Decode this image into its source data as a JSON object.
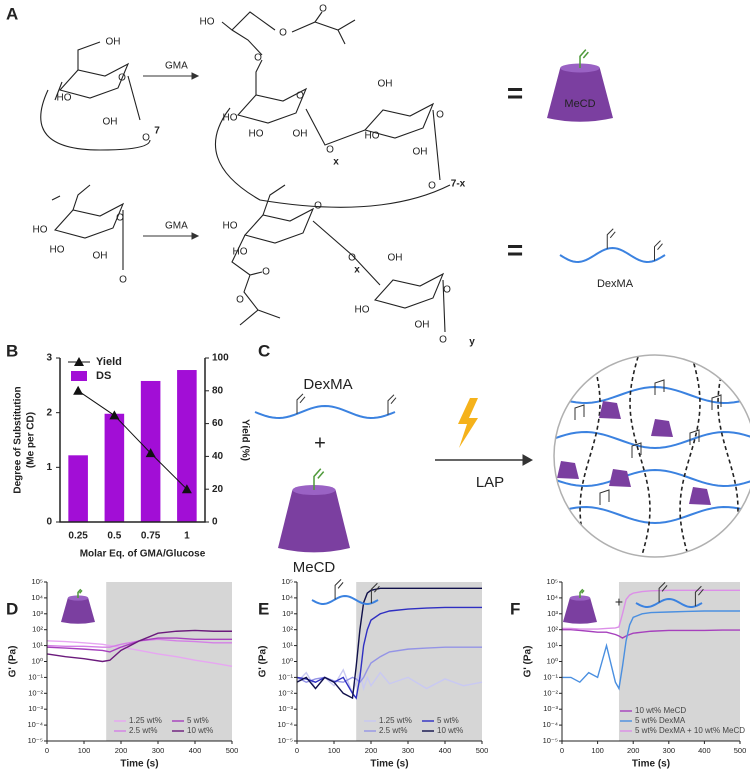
{
  "scheme": {
    "panel": "A",
    "row1": {
      "reactant_labels": [
        "OH",
        "O",
        "HO",
        "OH",
        "O",
        "7"
      ],
      "reagent": "GMA",
      "product_labels": [
        "HO",
        "O",
        "O",
        "O",
        "O",
        "HO",
        "HO",
        "OH",
        "O",
        "x",
        "OH",
        "O",
        "HO",
        "OH",
        "O",
        "7-x"
      ],
      "equals": "=",
      "product_name": "MeCD"
    },
    "row2": {
      "reactant_labels": [
        "O",
        "HO",
        "HO",
        "OH",
        "O"
      ],
      "reagent": "GMA",
      "product_labels": [
        "O",
        "HO",
        "HO",
        "O",
        "O",
        "O",
        "x",
        "OH",
        "O",
        "HO",
        "OH",
        "O",
        "y"
      ],
      "equals": "=",
      "product_name": "DexMA"
    }
  },
  "crosslinking": {
    "panel": "C",
    "polymer": "DexMA",
    "plus": "+",
    "crosslinker": "MeCD",
    "initiator": "LAP"
  },
  "chart_data": [
    {
      "type": "combo",
      "panel": "B",
      "categories": [
        "0.25",
        "0.5",
        "0.75",
        "1"
      ],
      "xlabel": "Molar Eq. of GMA/Glucose",
      "ylabel": [
        "Degree of Substitution",
        "(Me per CD)"
      ],
      "y2label": "Yield (%)",
      "ylim": [
        0,
        3
      ],
      "yticks": [
        0,
        1,
        2,
        3
      ],
      "y2lim": [
        0,
        100
      ],
      "y2ticks": [
        0,
        20,
        40,
        60,
        80,
        100
      ],
      "legend": "top-left",
      "series": [
        {
          "name": "Yield",
          "type": "line",
          "axis": "y2",
          "color": "#111111",
          "values": [
            80,
            65,
            42,
            20
          ]
        },
        {
          "name": "DS",
          "type": "bar",
          "color": "#a20ed6",
          "values": [
            1.22,
            1.98,
            2.58,
            2.78
          ]
        }
      ]
    },
    {
      "type": "line",
      "panel": "D",
      "xlabel": "Time (s)",
      "ylabel": "G' (Pa)",
      "log_scale": true,
      "xlim": [
        0,
        500
      ],
      "xticks": [
        0,
        100,
        200,
        300,
        400,
        500
      ],
      "ylim": [
        1e-05,
        100000
      ],
      "yticks": [
        {
          "value": 1e-05,
          "label": "10⁻⁵"
        },
        {
          "value": 0.0001,
          "label": "10⁻⁴"
        },
        {
          "value": 0.001,
          "label": "10⁻³"
        },
        {
          "value": 0.01,
          "label": "10⁻²"
        },
        {
          "value": 0.1,
          "label": "10⁻¹"
        },
        {
          "value": 1,
          "label": "10⁰"
        },
        {
          "value": 10,
          "label": "10¹"
        },
        {
          "value": 100,
          "label": "10²"
        },
        {
          "value": 1000,
          "label": "10³"
        },
        {
          "value": 10000,
          "label": "10⁴"
        },
        {
          "value": 100000,
          "label": "10⁵"
        }
      ],
      "highlight_xlim": [
        160,
        500
      ],
      "legend": "bottom-right",
      "legend_columns": 2,
      "x": [
        0,
        50,
        100,
        150,
        170,
        200,
        250,
        300,
        350,
        400,
        450,
        500
      ],
      "series": [
        {
          "name": "1.25 wt%",
          "color": "#e7a6f2",
          "values": [
            20,
            18,
            15,
            12,
            10,
            8,
            5,
            3,
            2,
            1.2,
            0.8,
            0.5
          ]
        },
        {
          "name": "2.5 wt%",
          "color": "#d47fe6",
          "values": [
            10,
            9,
            9,
            8,
            8,
            12,
            20,
            25,
            20,
            18,
            15,
            15
          ]
        },
        {
          "name": "5 wt%",
          "color": "#a640bd",
          "values": [
            8,
            7,
            6,
            5,
            4,
            8,
            20,
            30,
            30,
            25,
            25,
            25
          ]
        },
        {
          "name": "10 wt%",
          "color": "#6b1a7c",
          "values": [
            3,
            2,
            1.5,
            1,
            1.2,
            5,
            20,
            60,
            80,
            90,
            80,
            80
          ]
        }
      ]
    },
    {
      "type": "line",
      "panel": "E",
      "xlabel": "Time (s)",
      "ylabel": "G' (Pa)",
      "log_scale": true,
      "xlim": [
        0,
        500
      ],
      "xticks": [
        0,
        100,
        200,
        300,
        400,
        500
      ],
      "ylim": [
        1e-05,
        100000
      ],
      "yticks": [
        {
          "value": 1e-05,
          "label": "10⁻⁵"
        },
        {
          "value": 0.0001,
          "label": "10⁻⁴"
        },
        {
          "value": 0.001,
          "label": "10⁻³"
        },
        {
          "value": 0.01,
          "label": "10⁻²"
        },
        {
          "value": 0.1,
          "label": "10⁻¹"
        },
        {
          "value": 1,
          "label": "10⁰"
        },
        {
          "value": 10,
          "label": "10¹"
        },
        {
          "value": 100,
          "label": "10²"
        },
        {
          "value": 1000,
          "label": "10³"
        },
        {
          "value": 10000,
          "label": "10⁴"
        },
        {
          "value": 100000,
          "label": "10⁵"
        }
      ],
      "highlight_xlim": [
        160,
        500
      ],
      "legend": "bottom-right",
      "legend_columns": 2,
      "x": [
        0,
        25,
        50,
        75,
        100,
        125,
        150,
        160,
        170,
        180,
        190,
        200,
        225,
        250,
        300,
        350,
        400,
        450,
        500
      ],
      "series": [
        {
          "name": "1.25 wt%",
          "color": "#c9c9f2",
          "values": [
            0.05,
            0.2,
            0.02,
            0.1,
            0.03,
            0.3,
            0.01,
            0.05,
            0.2,
            0.02,
            0.1,
            0.03,
            0.2,
            0.04,
            0.1,
            0.02,
            0.08,
            0.03,
            0.05
          ]
        },
        {
          "name": "2.5 wt%",
          "color": "#9494e6",
          "values": [
            0.1,
            0.05,
            0.08,
            0.1,
            0.06,
            0.05,
            0.1,
            0.08,
            0.05,
            0.1,
            0.3,
            0.8,
            2,
            4,
            6,
            7,
            8,
            8,
            8
          ]
        },
        {
          "name": "5 wt%",
          "color": "#2f2fc2",
          "values": [
            0.1,
            0.08,
            0.05,
            0.1,
            0.05,
            0.1,
            0.01,
            0.005,
            0.1,
            10,
            100,
            400,
            1000,
            1500,
            2000,
            2300,
            2500,
            2500,
            2500
          ]
        },
        {
          "name": "10 wt%",
          "color": "#10104a",
          "values": [
            0.05,
            0.1,
            0.02,
            0.1,
            0.05,
            0.01,
            0.005,
            0.5,
            100,
            5000,
            20000,
            30000,
            40000,
            40000,
            40000,
            40000,
            40000,
            40000,
            40000
          ]
        }
      ]
    },
    {
      "type": "line",
      "panel": "F",
      "header_symbol": "+",
      "xlabel": "Time (s)",
      "ylabel": "G' (Pa)",
      "log_scale": true,
      "xlim": [
        0,
        500
      ],
      "xticks": [
        0,
        100,
        200,
        300,
        400,
        500
      ],
      "ylim": [
        1e-05,
        100000
      ],
      "yticks": [
        {
          "value": 1e-05,
          "label": "10⁻⁵"
        },
        {
          "value": 0.0001,
          "label": "10⁻⁴"
        },
        {
          "value": 0.001,
          "label": "10⁻³"
        },
        {
          "value": 0.01,
          "label": "10⁻²"
        },
        {
          "value": 0.1,
          "label": "10⁻¹"
        },
        {
          "value": 1,
          "label": "10⁰"
        },
        {
          "value": 10,
          "label": "10¹"
        },
        {
          "value": 100,
          "label": "10²"
        },
        {
          "value": 1000,
          "label": "10³"
        },
        {
          "value": 10000,
          "label": "10⁴"
        },
        {
          "value": 100000,
          "label": "10⁵"
        }
      ],
      "highlight_xlim": [
        160,
        500
      ],
      "legend": "bottom-right",
      "legend_columns": 1,
      "x": [
        0,
        25,
        50,
        75,
        100,
        125,
        150,
        160,
        170,
        180,
        190,
        200,
        225,
        250,
        300,
        350,
        400,
        450,
        500
      ],
      "series": [
        {
          "name": "10 wt% MeCD",
          "color": "#a640bd",
          "values": [
            100,
            100,
            90,
            80,
            70,
            70,
            50,
            40,
            30,
            40,
            50,
            60,
            70,
            80,
            90,
            90,
            90,
            95,
            95
          ]
        },
        {
          "name": "5 wt% DexMA",
          "color": "#4a8fe0",
          "values": [
            0.1,
            0.1,
            0.05,
            0.2,
            0.1,
            10,
            0.05,
            0.02,
            0.5,
            20,
            200,
            600,
            1000,
            1200,
            1300,
            1400,
            1500,
            1500,
            1500
          ]
        },
        {
          "name": "5 wt% DexMA + 10 wt% MeCD",
          "color": "#dc8fe8",
          "values": [
            120,
            120,
            110,
            110,
            110,
            120,
            130,
            150,
            1000,
            8000,
            15000,
            20000,
            25000,
            28000,
            30000,
            30000,
            30000,
            30000,
            30000
          ]
        }
      ]
    }
  ]
}
